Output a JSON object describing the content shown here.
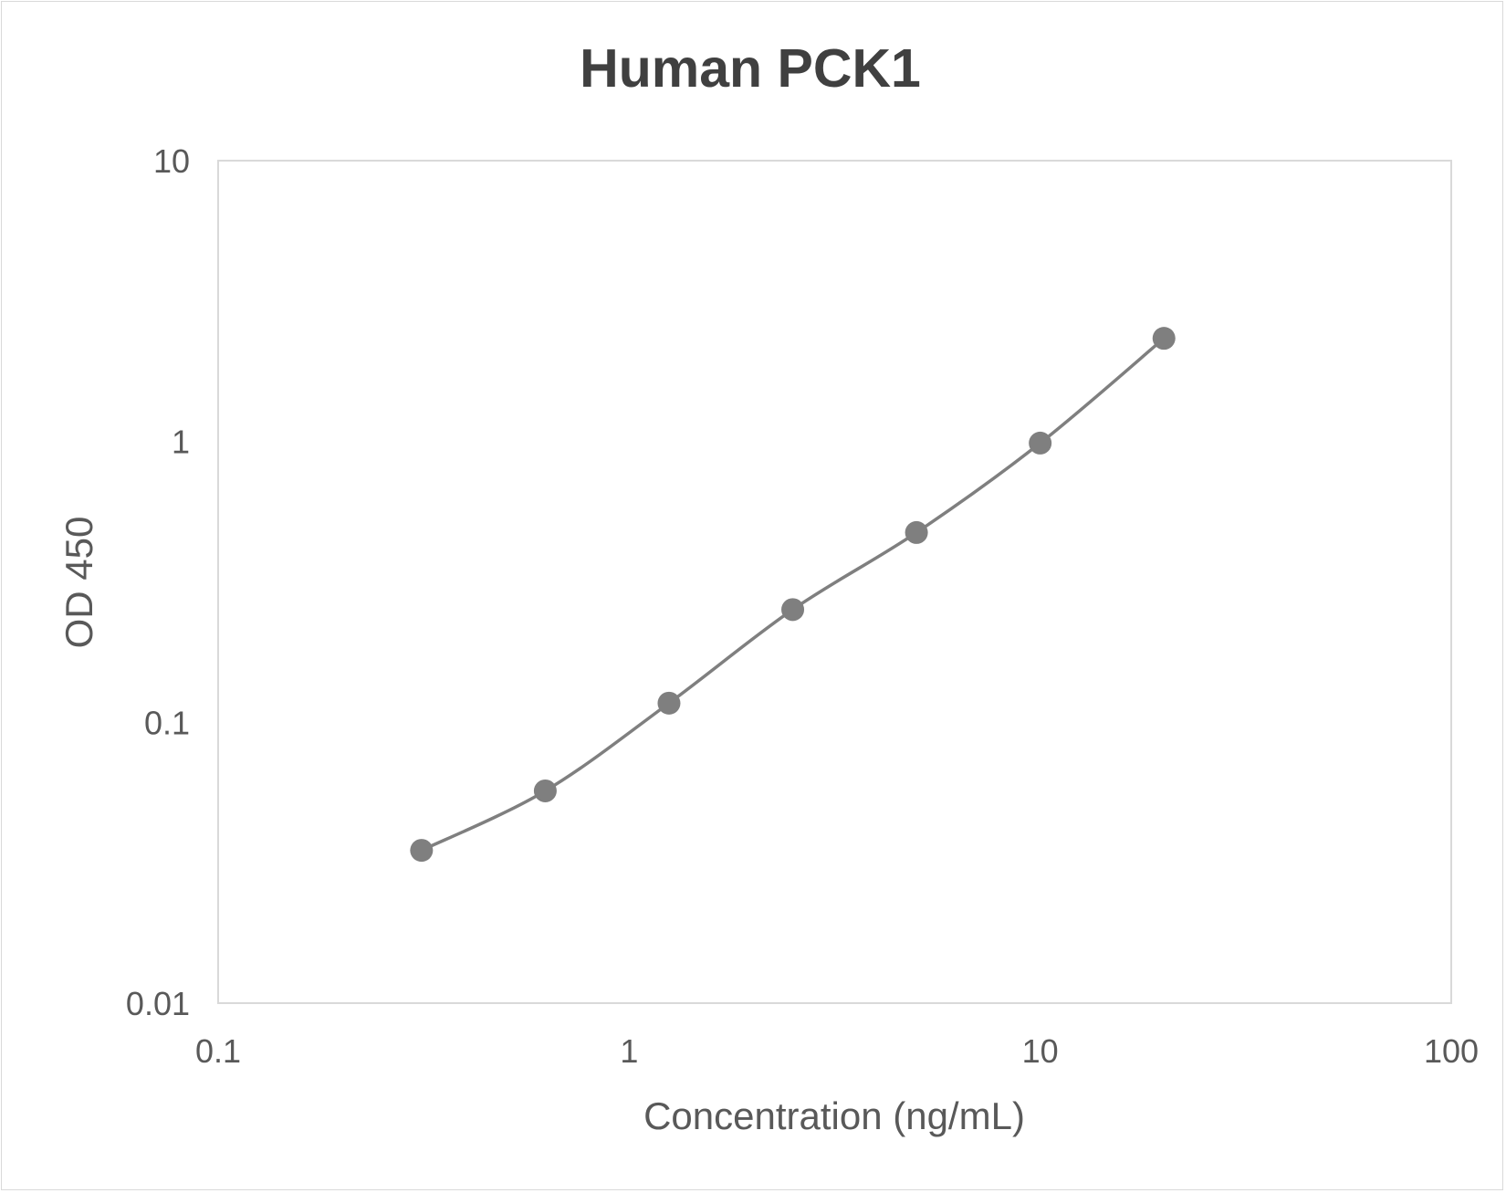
{
  "chart_data": {
    "type": "line",
    "title": "Human PCK1",
    "xlabel": "Concentration (ng/mL)",
    "ylabel": "OD 450",
    "xscale": "log",
    "yscale": "log",
    "xlim": [
      0.1,
      100
    ],
    "ylim": [
      0.01,
      10
    ],
    "xticks": [
      "0.1",
      "1",
      "10",
      "100"
    ],
    "yticks": [
      "0.01",
      "0.1",
      "1",
      "10"
    ],
    "grid": false,
    "legend": "none",
    "line_color": "#7f7f7f",
    "marker_color": "#7f7f7f",
    "smooth": true,
    "series": [
      {
        "x": [
          0.3125,
          0.625,
          1.25,
          2.5,
          5,
          10,
          20
        ],
        "y": [
          0.035,
          0.057,
          0.117,
          0.252,
          0.474,
          0.987,
          2.33
        ]
      }
    ]
  }
}
